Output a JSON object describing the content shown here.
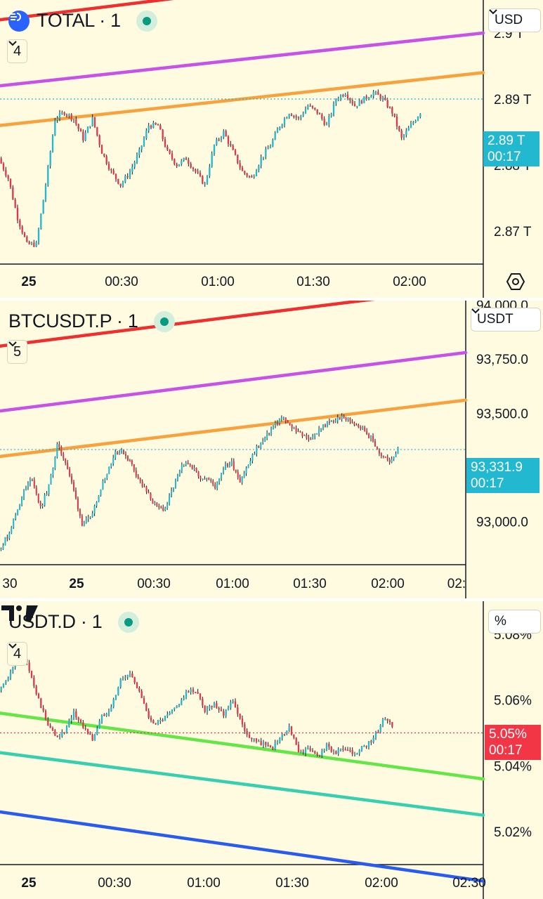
{
  "panels": [
    {
      "symbol": "TOTAL · 1",
      "collapse_count": "4",
      "unit": "USD",
      "price_ticks": [
        "2.9 T",
        "2.89 T",
        "2.88 T",
        "2.87 T"
      ],
      "price_tag": "2.89 T",
      "countdown": "00:17",
      "time_ticks": [
        "25",
        "00:30",
        "01:00",
        "01:30",
        "02:00"
      ],
      "tag_color": "#22b8cf"
    },
    {
      "symbol": "BTCUSDT.P · 1",
      "collapse_count": "5",
      "unit": "USDT",
      "price_ticks": [
        "94,000.0",
        "93,750.0",
        "93,500.0",
        "93,000.0"
      ],
      "price_tag": "93,331.9",
      "countdown": "00:17",
      "time_ticks": [
        "30",
        "25",
        "00:30",
        "01:00",
        "01:30",
        "02:00",
        "02:"
      ],
      "tag_color": "#22b8cf"
    },
    {
      "symbol": "USDT.D · 1",
      "collapse_count": "4",
      "unit": "%",
      "price_ticks": [
        "5.08%",
        "5.06%",
        "5.04%",
        "5.02%"
      ],
      "price_tag": "5.05%",
      "countdown": "00:17",
      "time_ticks": [
        "25",
        "00:30",
        "01:00",
        "01:30",
        "02:00",
        "02:30"
      ],
      "tag_color": "#f23645"
    }
  ],
  "colors": {
    "bull": "#22b8cf",
    "bear": "#e0384a",
    "red_line": "#ef2f2f",
    "purple_line": "#c653e6",
    "orange_line": "#f7a23c",
    "green_line": "#64e646",
    "teal_line": "#36cfb0",
    "blue_line": "#2a5bf0"
  },
  "icons": {
    "logo": "tradingview-logo",
    "gear": "settings-hexagon-icon",
    "chevron": "chevron-down-icon",
    "symbol_logo": "total-market-logo"
  },
  "chart_data": [
    {
      "type": "candlestick",
      "symbol": "TOTAL",
      "ylim": [
        2.865,
        2.905
      ],
      "yticks": [
        2.9,
        2.89,
        2.88,
        2.87
      ],
      "last": 2.89,
      "close_path": [
        2.881,
        2.878,
        2.872,
        2.868,
        2.868,
        2.877,
        2.887,
        2.888,
        2.887,
        2.884,
        2.887,
        2.882,
        2.879,
        2.877,
        2.879,
        2.882,
        2.886,
        2.886,
        2.882,
        2.88,
        2.881,
        2.879,
        2.877,
        2.883,
        2.885,
        2.882,
        2.879,
        2.878,
        2.881,
        2.883,
        2.886,
        2.888,
        2.887,
        2.889,
        2.888,
        2.886,
        2.89,
        2.891,
        2.889,
        2.89,
        2.891,
        2.89,
        2.888,
        2.884,
        2.886,
        2.888
      ],
      "channel_lines": [
        {
          "color": "red",
          "y": [
            2.902,
            2.911
          ]
        },
        {
          "color": "purple",
          "y": [
            2.892,
            2.9
          ]
        },
        {
          "color": "orange",
          "y": [
            2.886,
            2.894
          ]
        }
      ]
    },
    {
      "type": "candlestick",
      "symbol": "BTCUSDT.P",
      "ylim": [
        92800,
        94020
      ],
      "yticks": [
        94000,
        93750,
        93500,
        93000
      ],
      "last": 93331.9,
      "close_path": [
        92870,
        92930,
        93030,
        93140,
        93200,
        93060,
        93160,
        93350,
        93280,
        93140,
        92990,
        93010,
        93130,
        93230,
        93320,
        93320,
        93260,
        93180,
        93120,
        93060,
        93060,
        93160,
        93250,
        93270,
        93210,
        93200,
        93160,
        93250,
        93270,
        93190,
        93260,
        93340,
        93380,
        93440,
        93480,
        93440,
        93420,
        93380,
        93400,
        93440,
        93460,
        93480,
        93470,
        93450,
        93420,
        93370,
        93300,
        93280,
        93330
      ],
      "channel_lines": [
        {
          "color": "red",
          "y": [
            93810,
            94080
          ]
        },
        {
          "color": "purple",
          "y": [
            93510,
            93780
          ]
        },
        {
          "color": "orange",
          "y": [
            93300,
            93560
          ]
        }
      ]
    },
    {
      "type": "candlestick",
      "symbol": "USDT.D",
      "ylim": [
        5.01,
        5.09
      ],
      "yticks": [
        5.08,
        5.06,
        5.04,
        5.02
      ],
      "last": 5.05,
      "close_path": [
        5.063,
        5.066,
        5.075,
        5.071,
        5.062,
        5.054,
        5.049,
        5.05,
        5.056,
        5.052,
        5.048,
        5.055,
        5.058,
        5.066,
        5.068,
        5.063,
        5.054,
        5.053,
        5.055,
        5.058,
        5.062,
        5.063,
        5.057,
        5.059,
        5.056,
        5.06,
        5.052,
        5.048,
        5.047,
        5.045,
        5.048,
        5.052,
        5.044,
        5.045,
        5.043,
        5.046,
        5.044,
        5.045,
        5.043,
        5.046,
        5.048,
        5.054,
        5.052
      ],
      "channel_lines": [
        {
          "color": "green",
          "y": [
            5.056,
            5.036
          ]
        },
        {
          "color": "teal",
          "y": [
            5.044,
            5.025
          ]
        },
        {
          "color": "blue",
          "y": [
            5.026,
            5.005
          ]
        }
      ]
    }
  ]
}
